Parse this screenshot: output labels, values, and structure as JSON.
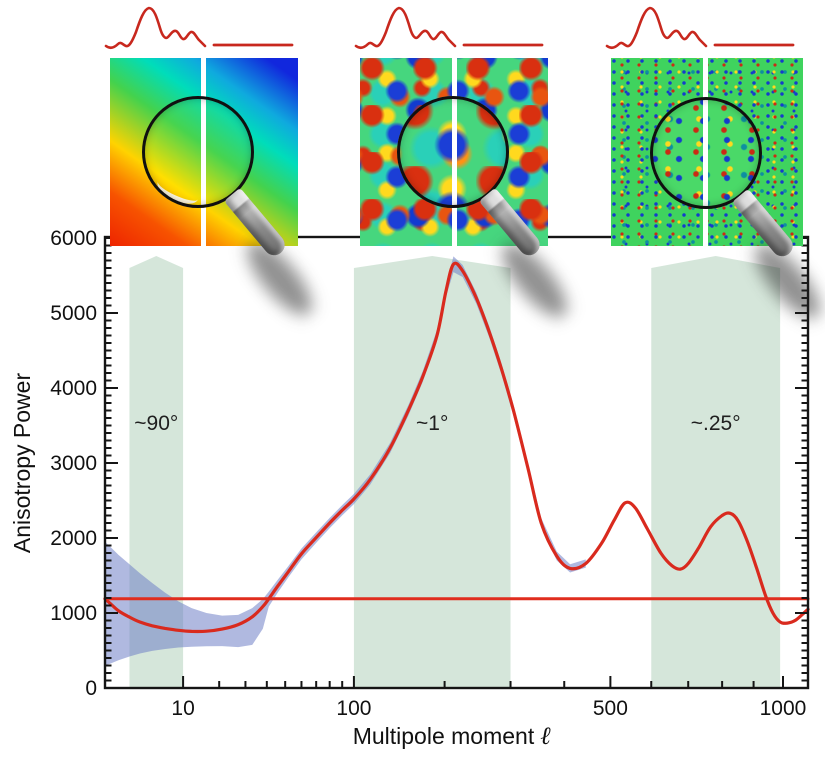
{
  "accent_red": "#d92a1e",
  "chart_data": {
    "type": "line",
    "title": "",
    "ylabel": "Anisotropy Power",
    "xlabel": "Multipole moment",
    "xlabel_symbol": "ℓ",
    "x_axis": {
      "scale": "power-law (l^0.4, log-like)",
      "range": [
        0.53,
        1090
      ],
      "major_ticks": [
        10,
        100,
        500,
        1000
      ],
      "major_tick_labels": [
        "10",
        "100",
        "500",
        "1000"
      ],
      "minor_ticks": [
        20,
        30,
        40,
        50,
        60,
        70,
        80,
        90,
        200,
        300,
        400,
        600,
        700,
        800,
        900
      ]
    },
    "y_axis": {
      "range": [
        0,
        6000
      ],
      "major_tick_step": 1000,
      "minor_tick_step": 100,
      "major_tick_labels": [
        "0",
        "1000",
        "2000",
        "3000",
        "4000",
        "5000",
        "6000"
      ]
    },
    "series": [
      {
        "name": "acoustic-peaks-model-curve",
        "color": "#d92a1e",
        "width": 3.2,
        "points": [
          [
            0.53,
            1190
          ],
          [
            0.8,
            1115
          ],
          [
            1.2,
            1030
          ],
          [
            2,
            945
          ],
          [
            3,
            880
          ],
          [
            4.5,
            830
          ],
          [
            6.5,
            795
          ],
          [
            9,
            770
          ],
          [
            12,
            755
          ],
          [
            16,
            757
          ],
          [
            21,
            785
          ],
          [
            27,
            845
          ],
          [
            33,
            950
          ],
          [
            38,
            1085
          ],
          [
            41,
            1190
          ],
          [
            46,
            1365
          ],
          [
            52,
            1555
          ],
          [
            60,
            1790
          ],
          [
            70,
            2005
          ],
          [
            80,
            2200
          ],
          [
            90,
            2370
          ],
          [
            100,
            2520
          ],
          [
            115,
            2780
          ],
          [
            135,
            3200
          ],
          [
            155,
            3700
          ],
          [
            172,
            4150
          ],
          [
            190,
            4700
          ],
          [
            202,
            5300
          ],
          [
            212,
            5650
          ],
          [
            225,
            5560
          ],
          [
            245,
            5200
          ],
          [
            265,
            4750
          ],
          [
            285,
            4250
          ],
          [
            305,
            3700
          ],
          [
            330,
            2950
          ],
          [
            355,
            2200
          ],
          [
            385,
            1760
          ],
          [
            412,
            1595
          ],
          [
            445,
            1660
          ],
          [
            480,
            1930
          ],
          [
            510,
            2250
          ],
          [
            535,
            2470
          ],
          [
            560,
            2400
          ],
          [
            590,
            2120
          ],
          [
            625,
            1800
          ],
          [
            655,
            1630
          ],
          [
            678,
            1585
          ],
          [
            700,
            1660
          ],
          [
            730,
            1870
          ],
          [
            765,
            2150
          ],
          [
            800,
            2300
          ],
          [
            825,
            2330
          ],
          [
            850,
            2230
          ],
          [
            880,
            1950
          ],
          [
            910,
            1600
          ],
          [
            940,
            1230
          ],
          [
            965,
            1000
          ],
          [
            990,
            880
          ],
          [
            1015,
            865
          ],
          [
            1045,
            905
          ],
          [
            1075,
            1000
          ],
          [
            1090,
            1050
          ]
        ]
      },
      {
        "name": "flat-featureless-spectrum-line",
        "color": "#e02d1e",
        "width": 3,
        "points": [
          [
            0.53,
            1190
          ],
          [
            1090,
            1190
          ]
        ]
      }
    ],
    "uncertainty_band": {
      "color": "rgba(112,128,198,0.55)",
      "points": [
        [
          0.53,
          1950,
          300
        ],
        [
          0.8,
          1870,
          330
        ],
        [
          1.2,
          1775,
          370
        ],
        [
          2,
          1650,
          420
        ],
        [
          3,
          1530,
          460
        ],
        [
          4.5,
          1400,
          495
        ],
        [
          6.5,
          1270,
          520
        ],
        [
          9,
          1155,
          540
        ],
        [
          12,
          1065,
          550
        ],
        [
          16,
          1000,
          557
        ],
        [
          21,
          965,
          558
        ],
        [
          27,
          975,
          545
        ],
        [
          33,
          1065,
          575
        ],
        [
          38,
          1185,
          790
        ],
        [
          41,
          1285,
          1085
        ],
        [
          46,
          1450,
          1280
        ],
        [
          52,
          1630,
          1480
        ],
        [
          60,
          1860,
          1715
        ],
        [
          70,
          2075,
          1935
        ],
        [
          80,
          2268,
          2132
        ],
        [
          90,
          2438,
          2302
        ],
        [
          100,
          2588,
          2452
        ],
        [
          115,
          2848,
          2712
        ],
        [
          135,
          3268,
          3132
        ],
        [
          155,
          3770,
          3630
        ],
        [
          172,
          4222,
          4078
        ],
        [
          190,
          4775,
          4625
        ],
        [
          202,
          5380,
          5220
        ],
        [
          212,
          5755,
          5545
        ],
        [
          225,
          5640,
          5480
        ],
        [
          245,
          5275,
          5125
        ],
        [
          265,
          4825,
          4675
        ],
        [
          285,
          4325,
          4175
        ],
        [
          305,
          3775,
          3625
        ],
        [
          330,
          3020,
          2880
        ],
        [
          355,
          2265,
          2135
        ],
        [
          385,
          1820,
          1700
        ],
        [
          412,
          1650,
          1540
        ],
        [
          445,
          1715,
          1605
        ]
      ]
    },
    "angular_scale_bands": {
      "fill": "rgba(134,182,150,0.35)",
      "label_color": "#1f1f1f",
      "bands": [
        {
          "label": "~90°",
          "l_min": 2,
          "l_max": 10
        },
        {
          "label": "~1°",
          "l_min": 100,
          "l_max": 300
        },
        {
          "label": "~.25°",
          "l_min": 600,
          "l_max": 990
        }
      ]
    }
  },
  "insets": [
    {
      "name": "cmb-map-large-scales",
      "angular_scale": "~90°",
      "pattern": "smooth rainbow gradient"
    },
    {
      "name": "cmb-map-degree-scales",
      "angular_scale": "~1°",
      "pattern": "mottled hot-cold blobs"
    },
    {
      "name": "cmb-map-arcminute-scales",
      "angular_scale": "~.25°",
      "pattern": "fine green speckle"
    }
  ],
  "sketch": {
    "name": "power-spectrum-sketch",
    "line_name": "flat-spectrum-line",
    "color": "#c8281e"
  }
}
